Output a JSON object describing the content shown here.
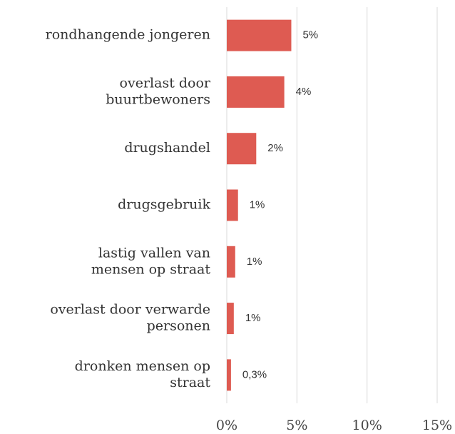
{
  "chart_data": {
    "type": "hbar",
    "categories": [
      "rondhangende jongeren",
      "overlast door\nbuurtbewoners",
      "drugshandel",
      "drugsgebruik",
      "lastig vallen van\nmensen op straat",
      "overlast door verwarde\npersonen",
      "dronken mensen op\nstraat"
    ],
    "values": [
      4.6,
      4.1,
      2.1,
      0.8,
      0.6,
      0.5,
      0.3
    ],
    "value_labels": [
      "5%",
      "4%",
      "2%",
      "1%",
      "1%",
      "1%",
      "0,3%"
    ],
    "color": "#de5b52",
    "xlim": [
      0,
      15
    ],
    "xticks": [
      {
        "value": 0,
        "label": "0%"
      },
      {
        "value": 5,
        "label": "5%"
      },
      {
        "value": 10,
        "label": "10%"
      },
      {
        "value": 15,
        "label": "15%"
      }
    ],
    "grid": true
  }
}
